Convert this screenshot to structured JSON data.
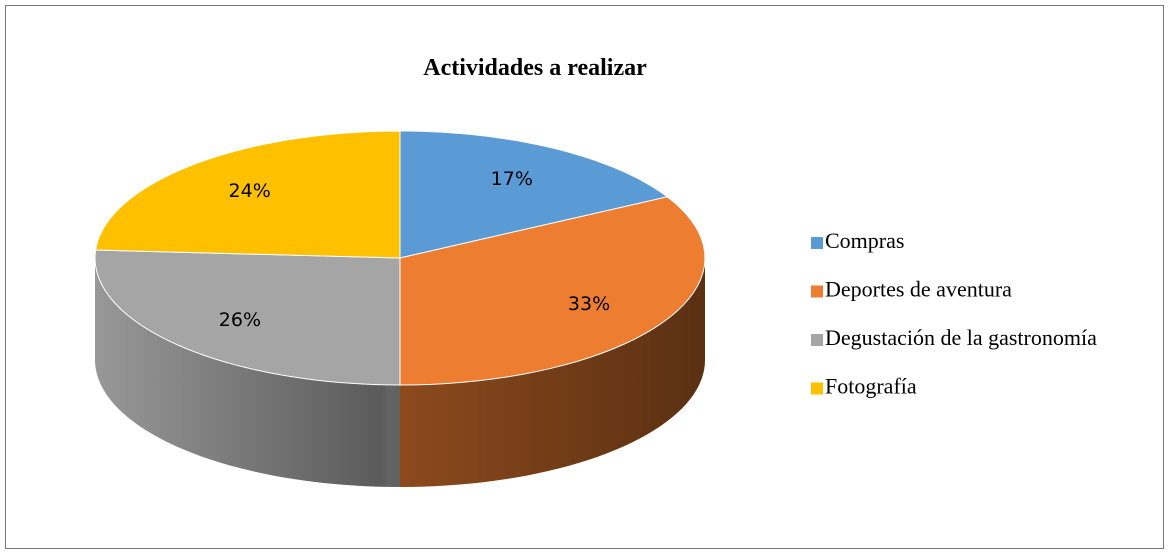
{
  "chart_data": {
    "type": "pie",
    "title": "Actividades a realizar",
    "categories": [
      "Compras",
      "Deportes de aventura",
      "Degustación de la gastronomía",
      "Fotografía"
    ],
    "values": [
      17,
      33,
      26,
      24
    ],
    "value_labels": [
      "17%",
      "33%",
      "26%",
      "24%"
    ],
    "colors": [
      "#5b9bd5",
      "#ed7d31",
      "#a5a5a5",
      "#ffc000"
    ],
    "legend": "right"
  }
}
